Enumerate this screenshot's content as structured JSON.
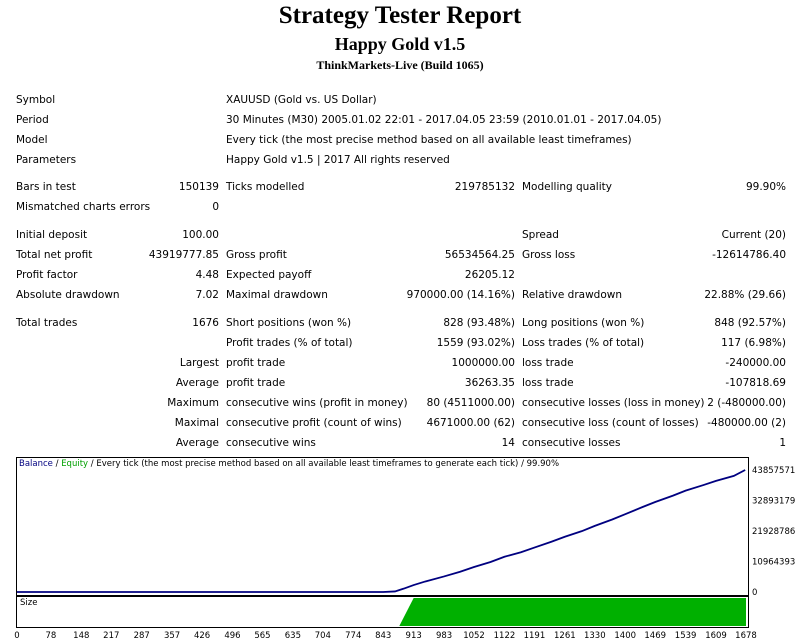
{
  "header": {
    "title": "Strategy Tester Report",
    "expert": "Happy Gold v1.5",
    "server": "ThinkMarkets-Live (Build 1065)"
  },
  "info": {
    "symbol_label": "Symbol",
    "symbol": "XAUUSD (Gold vs. US Dollar)",
    "period_label": "Period",
    "period": "30 Minutes (M30) 2005.01.02 22:01 - 2017.04.05 23:59 (2010.01.01 - 2017.04.05)",
    "model_label": "Model",
    "model": "Every tick (the most precise method based on all available least timeframes)",
    "parameters_label": "Parameters",
    "parameters": "Happy Gold v1.5 | 2017 All rights reserved"
  },
  "stats": {
    "bars_label": "Bars in test",
    "bars": "150139",
    "ticks_label": "Ticks modelled",
    "ticks": "219785132",
    "quality_label": "Modelling quality",
    "quality": "99.90%",
    "mismatched_label": "Mismatched charts errors",
    "mismatched": "0",
    "deposit_label": "Initial deposit",
    "deposit": "100.00",
    "spread_label": "Spread",
    "spread": "Current (20)",
    "net_label": "Total net profit",
    "net": "43919777.85",
    "gross_profit_label": "Gross profit",
    "gross_profit": "56534564.25",
    "gross_loss_label": "Gross loss",
    "gross_loss": "-12614786.40",
    "pf_label": "Profit factor",
    "pf": "4.48",
    "payoff_label": "Expected payoff",
    "payoff": "26205.12",
    "abs_dd_label": "Absolute drawdown",
    "abs_dd": "7.02",
    "max_dd_label": "Maximal drawdown",
    "max_dd": "970000.00 (14.16%)",
    "rel_dd_label": "Relative drawdown",
    "rel_dd": "22.88% (29.66)",
    "trades_label": "Total trades",
    "trades": "1676",
    "short_label": "Short positions (won %)",
    "short": "828 (93.48%)",
    "long_label": "Long positions (won %)",
    "long": "848 (92.57%)",
    "profit_trades_label": "Profit trades (% of total)",
    "profit_trades": "1559 (93.02%)",
    "loss_trades_label": "Loss trades (% of total)",
    "loss_trades": "117 (6.98%)",
    "largest": "Largest",
    "avg1": "Average",
    "maximum": "Maximum",
    "maximal": "Maximal",
    "avg2": "Average",
    "largest_profit_label": "profit trade",
    "largest_profit": "1000000.00",
    "largest_loss_label": "loss trade",
    "largest_loss": "-240000.00",
    "avg_profit_label": "profit trade",
    "avg_profit": "36263.35",
    "avg_loss_label": "loss trade",
    "avg_loss": "-107818.69",
    "max_cons_wins_label": "consecutive wins (profit in money)",
    "max_cons_wins": "80 (4511000.00)",
    "max_cons_losses_label": "consecutive losses (loss in money)",
    "max_cons_losses": "2 (-480000.00)",
    "maximal_profit_label": "consecutive profit (count of wins)",
    "maximal_profit": "4671000.00 (62)",
    "maximal_loss_label": "consecutive loss (count of losses)",
    "maximal_loss": "-480000.00 (2)",
    "avg_wins_label": "consecutive wins",
    "avg_wins": "14",
    "avg_losses_label": "consecutive losses",
    "avg_losses": "1"
  },
  "legend": {
    "balance": "Balance",
    "sep1": " / ",
    "equity": "Equity",
    "rest": " / Every tick (the most precise method based on all available least timeframes to generate each tick) / 99.90%",
    "size": "Size"
  },
  "chart_data": {
    "type": "line",
    "series": [
      {
        "name": "Balance",
        "color": "#000080"
      },
      {
        "name": "Equity",
        "color": "#00a000"
      },
      {
        "name": "Size",
        "color": "#00b000"
      }
    ],
    "x_ticks": [
      "0",
      "78",
      "148",
      "217",
      "287",
      "357",
      "426",
      "496",
      "565",
      "635",
      "704",
      "774",
      "843",
      "913",
      "983",
      "1052",
      "1122",
      "1191",
      "1261",
      "1330",
      "1400",
      "1469",
      "1539",
      "1609",
      "1678"
    ],
    "y_ticks": [
      "43857571",
      "32893179",
      "21928786",
      "10964393",
      "0"
    ],
    "ylim": [
      0,
      43919877
    ],
    "x": [
      0,
      843,
      870,
      890,
      913,
      940,
      983,
      1020,
      1052,
      1090,
      1122,
      1160,
      1191,
      1230,
      1261,
      1300,
      1330,
      1370,
      1400,
      1440,
      1469,
      1510,
      1539,
      1580,
      1609,
      1650,
      1676
    ],
    "balance": [
      100,
      100,
      200000,
      1200000,
      2500000,
      3800000,
      5600000,
      7300000,
      9000000,
      10800000,
      12700000,
      14300000,
      16000000,
      18100000,
      19900000,
      21900000,
      23800000,
      26100000,
      28000000,
      30600000,
      32400000,
      34700000,
      36500000,
      38500000,
      40000000,
      41800000,
      43919877
    ],
    "size_start": 913,
    "size_ramp_start": 880
  }
}
